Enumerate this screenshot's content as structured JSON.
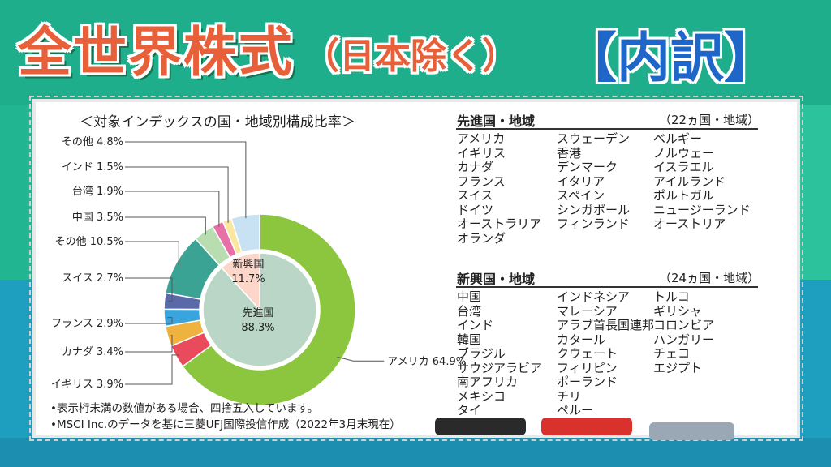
{
  "header": {
    "title": "全世界株式",
    "subtitle": "（日本除く）",
    "right_label": "【内訳】"
  },
  "chart_data": {
    "type": "pie",
    "title": "＜対象インデックスの国・地域別構成比率＞",
    "outer": [
      {
        "name": "アメリカ",
        "value": 64.9,
        "label": "アメリカ 64.9%",
        "color": "#8cc63f"
      },
      {
        "name": "イギリス",
        "value": 3.9,
        "label": "イギリス 3.9%",
        "color": "#e94b5c"
      },
      {
        "name": "カナダ",
        "value": 3.4,
        "label": "カナダ 3.4%",
        "color": "#f0b23e"
      },
      {
        "name": "フランス",
        "value": 2.9,
        "label": "フランス 2.9%",
        "color": "#3aa5dd"
      },
      {
        "name": "スイス",
        "value": 2.7,
        "label": "スイス 2.7%",
        "color": "#5a6aa8"
      },
      {
        "name": "その他",
        "value": 10.5,
        "label": "その他 10.5%",
        "color": "#3aa394"
      },
      {
        "name": "中国",
        "value": 3.5,
        "label": "中国 3.5%",
        "color": "#b8ddb0"
      },
      {
        "name": "台湾",
        "value": 1.9,
        "label": "台湾 1.9%",
        "color": "#e870a8"
      },
      {
        "name": "インド",
        "value": 1.5,
        "label": "インド 1.5%",
        "color": "#f9e7a0"
      },
      {
        "name": "その他",
        "value": 4.8,
        "label": "その他 4.8%",
        "color": "#c8e2f4"
      }
    ],
    "inner": [
      {
        "name": "先進国",
        "value": 88.3,
        "label": "88.3%",
        "color": "#b9d6c6"
      },
      {
        "name": "新興国",
        "value": 11.7,
        "label": "11.7%",
        "color": "#fcd6c8"
      }
    ]
  },
  "developed": {
    "title": "先進国・地域",
    "count": "（22ヵ国・地域）",
    "columns": [
      [
        "アメリカ",
        "イギリス",
        "カナダ",
        "フランス",
        "スイス",
        "ドイツ",
        "オーストラリア",
        "オランダ"
      ],
      [
        "スウェーデン",
        "香港",
        "デンマーク",
        "イタリア",
        "スペイン",
        "シンガポール",
        "フィンランド"
      ],
      [
        "ベルギー",
        "ノルウェー",
        "イスラエル",
        "アイルランド",
        "ポルトガル",
        "ニュージーランド",
        "オーストリア"
      ]
    ]
  },
  "emerging": {
    "title": "新興国・地域",
    "count": "（24ヵ国・地域）",
    "columns": [
      [
        "中国",
        "台湾",
        "インド",
        "韓国",
        "ブラジル",
        "サウジアラビア",
        "南アフリカ",
        "メキシコ",
        "タイ"
      ],
      [
        "インドネシア",
        "マレーシア",
        "アラブ首長国連邦",
        "カタール",
        "クウェート",
        "フィリピン",
        "ポーランド",
        "チリ",
        "ペルー"
      ],
      [
        "トルコ",
        "ギリシャ",
        "コロンビア",
        "ハンガリー",
        "チェコ",
        "エジプト"
      ]
    ]
  },
  "notes": [
    "•表示桁未満の数値がある場合、四捨五入しています。",
    "•MSCI Inc.のデータを基に三菱UFJ国際投信作成（2022年3月末現在）"
  ]
}
